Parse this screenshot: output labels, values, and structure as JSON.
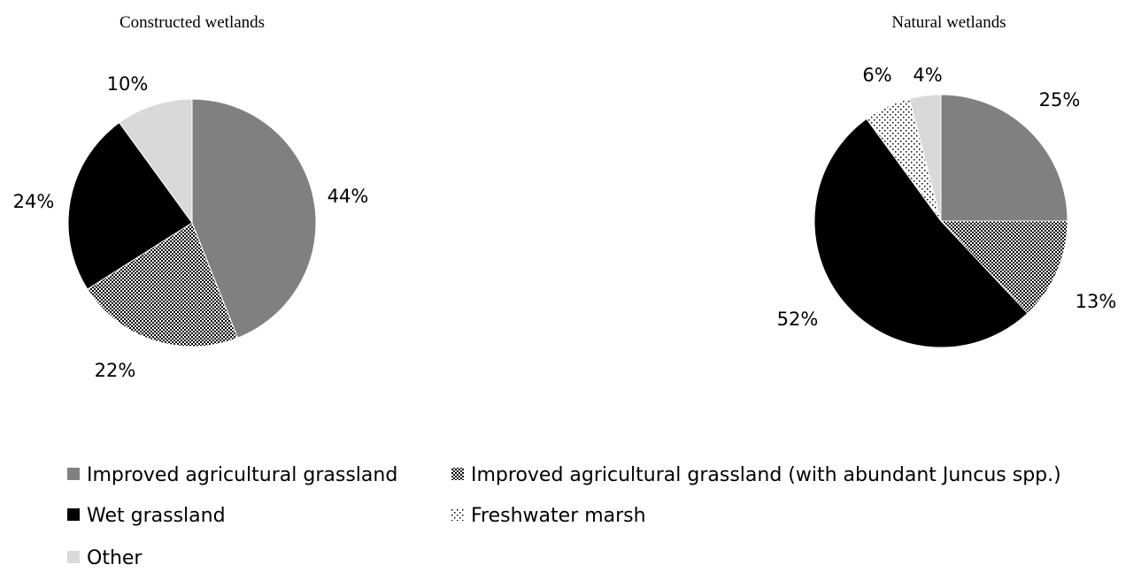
{
  "chart_data": [
    {
      "type": "pie",
      "title": "Constructed wetlands",
      "slices": [
        {
          "category": "Improved agricultural grassland",
          "value": 44,
          "label": "44%"
        },
        {
          "category": "Improved agricultural grassland (with abundant Juncus spp.)",
          "value": 22,
          "label": "22%"
        },
        {
          "category": "Wet grassland",
          "value": 24,
          "label": "24%"
        },
        {
          "category": "Freshwater marsh",
          "value": 0,
          "label": ""
        },
        {
          "category": "Other",
          "value": 10,
          "label": "10%"
        }
      ]
    },
    {
      "type": "pie",
      "title": "Natural wetlands",
      "slices": [
        {
          "category": "Improved agricultural grassland",
          "value": 25,
          "label": "25%"
        },
        {
          "category": "Improved agricultural grassland (with abundant Juncus spp.)",
          "value": 13,
          "label": "13%"
        },
        {
          "category": "Wet grassland",
          "value": 52,
          "label": "52%"
        },
        {
          "category": "Freshwater marsh",
          "value": 6,
          "label": "6%"
        },
        {
          "category": "Other",
          "value": 4,
          "label": "4%"
        }
      ]
    }
  ],
  "legend": {
    "placement": "bottom",
    "items": [
      {
        "label": "Improved agricultural grassland",
        "color": "#808080",
        "pattern": "solid"
      },
      {
        "label": "Improved agricultural grassland (with abundant Juncus spp.)",
        "color": "#000000",
        "pattern": "checker"
      },
      {
        "label": "Wet grassland",
        "color": "#000000",
        "pattern": "solid"
      },
      {
        "label": "Freshwater marsh",
        "color": "#000000",
        "pattern": "dots"
      },
      {
        "label": "Other",
        "color": "#d9d9d9",
        "pattern": "solid"
      }
    ]
  }
}
